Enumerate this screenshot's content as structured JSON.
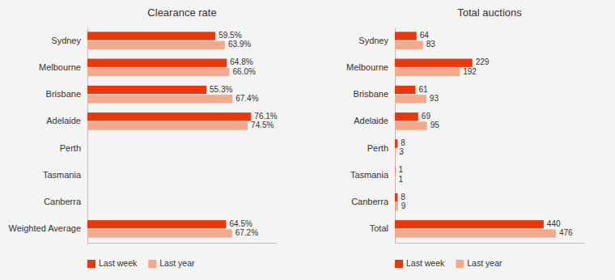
{
  "chart_data": [
    {
      "type": "bar",
      "orientation": "horizontal",
      "title": "Clearance rate",
      "categories": [
        "Sydney",
        "Melbourne",
        "Brisbane",
        "Adelaide",
        "Perth",
        "Tasmania",
        "Canberra",
        "Weighted Average"
      ],
      "series": [
        {
          "name": "Last week",
          "color": "#E8390E",
          "values": [
            59.5,
            64.8,
            55.3,
            76.1,
            0,
            0,
            0,
            64.5
          ],
          "value_labels": [
            "59.5%",
            "64.8%",
            "55.3%",
            "76.1%",
            null,
            null,
            null,
            "64.5%"
          ]
        },
        {
          "name": "Last year",
          "color": "#F2AA8C",
          "values": [
            63.9,
            66.0,
            67.4,
            74.5,
            0,
            0,
            0,
            67.2
          ],
          "value_labels": [
            "63.9%",
            "66.0%",
            "67.4%",
            "74.5%",
            null,
            null,
            null,
            "67.2%"
          ]
        }
      ],
      "xlim": [
        0,
        88
      ],
      "grid": false,
      "legend": "lower left",
      "data_labels": true,
      "tick_labels": "y"
    },
    {
      "type": "bar",
      "orientation": "horizontal",
      "title": "Total auctions",
      "categories": [
        "Sydney",
        "Melbourne",
        "Brisbane",
        "Adelaide",
        "Perth",
        "Tasmania",
        "Canberra",
        "Total"
      ],
      "series": [
        {
          "name": "Last week",
          "color": "#E8390E",
          "values": [
            64,
            229,
            61,
            69,
            8,
            1,
            8,
            440
          ]
        },
        {
          "name": "Last year",
          "color": "#F2AA8C",
          "values": [
            83,
            192,
            93,
            95,
            3,
            1,
            9,
            476
          ]
        }
      ],
      "xlim": [
        0,
        560
      ],
      "grid": false,
      "legend": "lower left",
      "data_labels": true,
      "tick_labels": "y"
    }
  ]
}
